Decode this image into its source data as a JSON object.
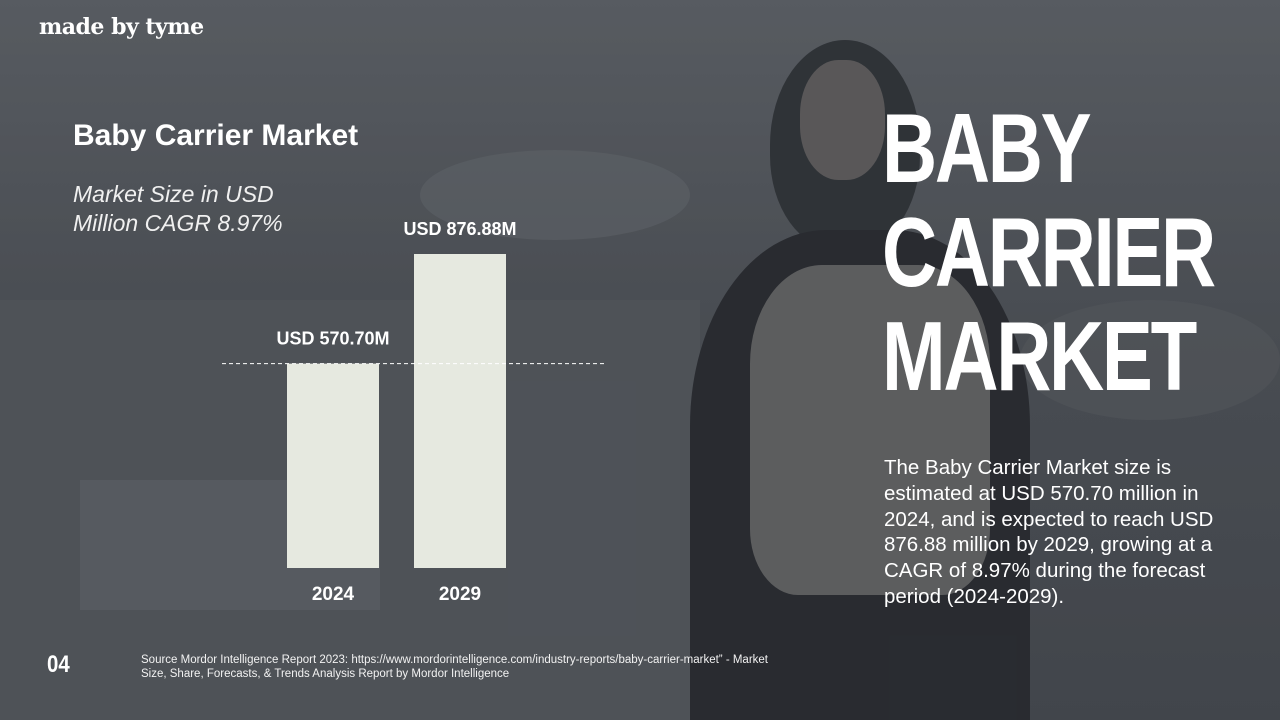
{
  "brand": "made by tyme",
  "page_number": "04",
  "source": "Source Mordor Intelligence Report 2023: https://www.mordorintelligence.com/industry-reports/baby-carrier-market” - Market Size, Share, Forecasts, & Trends Analysis Report by Mordor Intelligence",
  "headline": {
    "line1": "BABY",
    "line2": "CARRIER",
    "line3": "MARKET"
  },
  "description": "The Baby Carrier Market size is estimated at USD 570.70 million in 2024, and is expected to reach USD 876.88 million by 2029, growing at a CAGR of 8.97% during the forecast period (2024-2029).",
  "colors": {
    "bar": "#e6e9e0",
    "text": "#ffffff",
    "dashed_line": "#ffffff"
  },
  "chart_data": {
    "type": "bar",
    "title": "Baby Carrier Market",
    "subtitle": "Market Size in USD Million CAGR 8.97%",
    "categories": [
      "2024",
      "2029"
    ],
    "values": [
      570.7,
      876.88
    ],
    "data_labels": [
      "USD 570.70M",
      "USD 876.88M"
    ],
    "reference_line": {
      "value": 570.7,
      "style": "dashed"
    },
    "xlabel": "",
    "ylabel": "",
    "ylim": [
      0,
      876.88
    ],
    "grid": false,
    "legend": "none"
  }
}
